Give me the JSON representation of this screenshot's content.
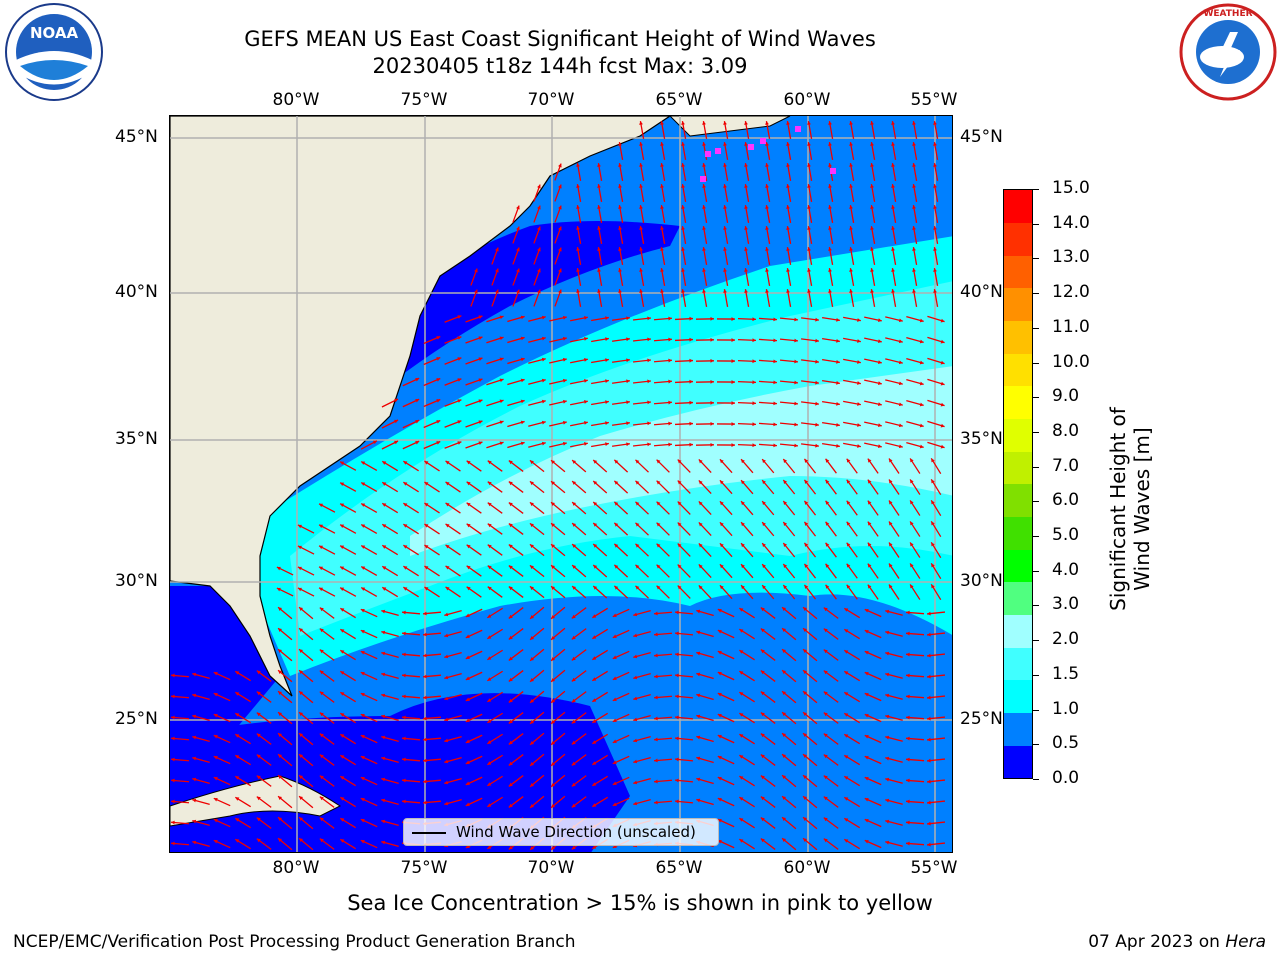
{
  "title": "GEFS MEAN US East Coast Significant Height of Wind Waves",
  "subtitle": "20230405 t18z 144h fcst   Max: 3.09",
  "logos": {
    "left": "NOAA",
    "right": "NATIONAL WEATHER SERVICE"
  },
  "map": {
    "lon_labels_top": [
      "80°W",
      "75°W",
      "70°W",
      "65°W",
      "60°W",
      "55°W"
    ],
    "lon_labels_bottom": [
      "80°W",
      "75°W",
      "70°W",
      "65°W",
      "60°W",
      "55°W"
    ],
    "lat_labels_left": [
      "45°N",
      "40°N",
      "35°N",
      "30°N",
      "25°N"
    ],
    "lat_labels_right": [
      "45°N",
      "40°N",
      "35°N",
      "30°N",
      "25°N"
    ],
    "legend": "Wind Wave Direction (unscaled)",
    "colors": {
      "land": "#eeecdc",
      "grid": "#b0b0b0",
      "arrow": "#ee0000",
      "ice": "#ff33ff"
    }
  },
  "colorbar": {
    "label": "Significant Height of Wind Waves [m]",
    "ticks": [
      "15.0",
      "14.0",
      "13.0",
      "12.0",
      "11.0",
      "10.0",
      "9.0",
      "8.0",
      "7.0",
      "6.0",
      "5.0",
      "4.0",
      "3.0",
      "2.0",
      "1.5",
      "1.0",
      "0.5",
      "0.0"
    ],
    "colors": [
      "#0000ff",
      "#0080ff",
      "#00ffff",
      "#40ffff",
      "#a0ffff",
      "#50ff80",
      "#00ff00",
      "#40e000",
      "#80e000",
      "#c0f000",
      "#e0ff00",
      "#ffff00",
      "#ffe000",
      "#ffc000",
      "#ff9000",
      "#ff6000",
      "#ff3000",
      "#ff0000"
    ]
  },
  "ice_note": "Sea Ice Concentration > 15% is shown in pink to yellow",
  "footer_left": "NCEP/EMC/Verification Post Processing Product Generation Branch",
  "footer_right_prefix": "07 Apr 2023 on ",
  "footer_right_machine": "Hera"
}
